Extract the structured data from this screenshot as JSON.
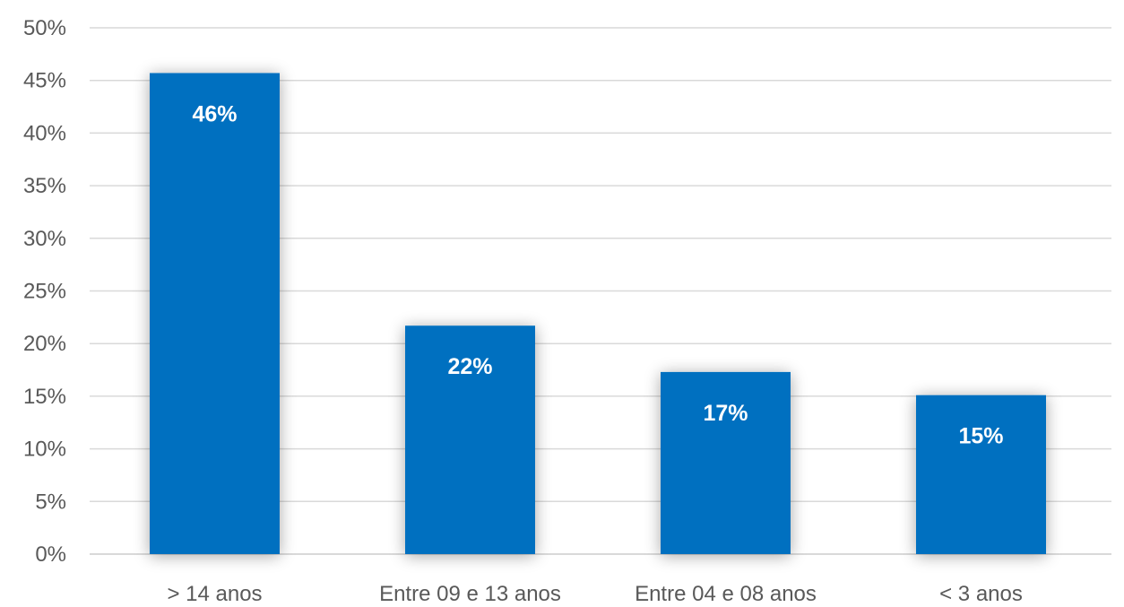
{
  "chart_data": {
    "type": "bar",
    "categories": [
      "> 14 anos",
      "Entre 09 e 13 anos",
      "Entre 04 e 08 anos",
      "< 3 anos"
    ],
    "values": [
      45.7,
      21.7,
      17.3,
      15.1
    ],
    "data_labels": [
      "46%",
      "22%",
      "17%",
      "15%"
    ],
    "title": "",
    "xlabel": "",
    "ylabel": "",
    "ylim": [
      0,
      50
    ],
    "y_ticks": [
      0,
      5,
      10,
      15,
      20,
      25,
      30,
      35,
      40,
      45,
      50
    ],
    "y_tick_labels": [
      "0%",
      "5%",
      "10%",
      "15%",
      "20%",
      "25%",
      "30%",
      "35%",
      "40%",
      "45%",
      "50%"
    ],
    "grid": true,
    "legend": "none",
    "colors": {
      "bar": "#0070c0",
      "grid": "#d9d9d9",
      "text": "#595959",
      "data_label": "#ffffff"
    }
  }
}
